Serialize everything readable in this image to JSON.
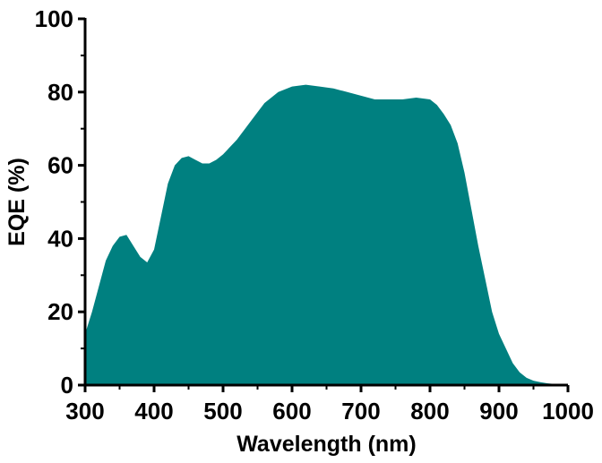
{
  "chart_data": {
    "type": "area",
    "title": "",
    "xlabel": "Wavelength (nm)",
    "ylabel": "EQE (%)",
    "xlim": [
      300,
      1000
    ],
    "ylim": [
      0,
      100
    ],
    "x_ticks": [
      "300",
      "400",
      "500",
      "600",
      "700",
      "800",
      "900",
      "1000"
    ],
    "y_ticks": [
      "0",
      "20",
      "40",
      "60",
      "80",
      "100"
    ],
    "grid": false,
    "legend": "none",
    "fill_color": "#008080",
    "series": [
      {
        "x": [
          300,
          310,
          320,
          330,
          340,
          350,
          360,
          370,
          380,
          390,
          400,
          410,
          420,
          430,
          440,
          450,
          460,
          470,
          480,
          490,
          500,
          520,
          540,
          560,
          580,
          600,
          620,
          640,
          660,
          680,
          700,
          720,
          740,
          760,
          780,
          800,
          810,
          820,
          830,
          840,
          850,
          860,
          870,
          880,
          890,
          900,
          910,
          920,
          930,
          940,
          950,
          960,
          970,
          980,
          990,
          1000
        ],
        "y": [
          14,
          20,
          27,
          34,
          38,
          40.5,
          41,
          38,
          35,
          33.5,
          37,
          46,
          55,
          60,
          62,
          62.5,
          61.5,
          60.5,
          60.5,
          61.5,
          63,
          67,
          72,
          77,
          80,
          81.5,
          82,
          81.5,
          81,
          80,
          79,
          78,
          78,
          78,
          78.5,
          78,
          76.5,
          74,
          71,
          66,
          58,
          48,
          38,
          29,
          20,
          14,
          10,
          6,
          3.5,
          2,
          1.2,
          0.8,
          0.5,
          0.3,
          0.2,
          0.2
        ]
      }
    ]
  }
}
